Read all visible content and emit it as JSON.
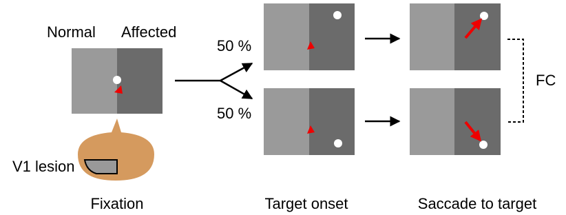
{
  "panels": {
    "fixation": {
      "left_label": "Normal",
      "right_label": "Affected",
      "caption": "Fixation",
      "lesion_label": "V1 lesion"
    },
    "target_onset": {
      "top_probability": "50 %",
      "bottom_probability": "50 %",
      "caption": "Target onset"
    },
    "saccade": {
      "bracket_label": "FC",
      "caption": "Saccade to target"
    }
  }
}
